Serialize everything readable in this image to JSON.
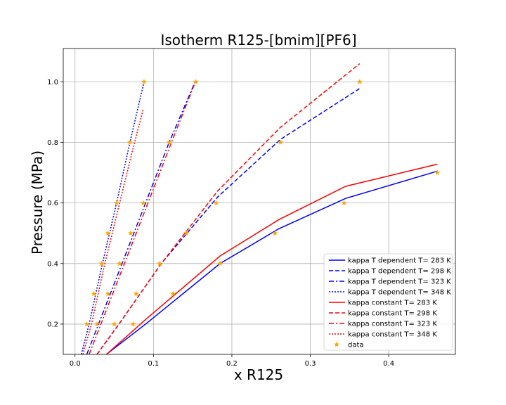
{
  "chart_data": {
    "type": "line",
    "title": "Isotherm R125-[bmim][PF6]",
    "xlabel": "x R125",
    "ylabel": "Pressure (MPa)",
    "xlim": [
      -0.015,
      0.485
    ],
    "ylim": [
      0.1,
      1.11
    ],
    "xticks": [
      0.0,
      0.1,
      0.2,
      0.3,
      0.4
    ],
    "xtick_labels": [
      "0.0",
      "0.1",
      "0.2",
      "0.3",
      "0.4"
    ],
    "yticks": [
      0.2,
      0.4,
      0.6,
      0.8,
      1.0
    ],
    "ytick_labels": [
      "0.2",
      "0.4",
      "0.6",
      "0.8",
      "1.0"
    ],
    "grid": true,
    "legend_position": "lower-right",
    "series": [
      {
        "name": "kappa T dependent T= 283 K",
        "color": "#0000ff",
        "dash": "solid",
        "x": [
          0.04,
          0.09,
          0.185,
          0.26,
          0.345,
          0.462
        ],
        "y": [
          0.1,
          0.2,
          0.4,
          0.515,
          0.615,
          0.705
        ]
      },
      {
        "name": "kappa T dependent T= 298 K",
        "color": "#0000ff",
        "dash": "dashed",
        "x": [
          0.028,
          0.056,
          0.11,
          0.182,
          0.262,
          0.363
        ],
        "y": [
          0.1,
          0.2,
          0.4,
          0.62,
          0.81,
          0.978
        ]
      },
      {
        "name": "kappa T dependent T= 323 K",
        "color": "#0000ff",
        "dash": "dashdot",
        "x": [
          0.015,
          0.03,
          0.06,
          0.09,
          0.12,
          0.154
        ],
        "y": [
          0.1,
          0.2,
          0.4,
          0.6,
          0.8,
          1.005
        ]
      },
      {
        "name": "kappa T dependent T= 348 K",
        "color": "#0000ff",
        "dash": "dotted",
        "x": [
          0.008,
          0.018,
          0.035,
          0.053,
          0.07,
          0.088
        ],
        "y": [
          0.1,
          0.2,
          0.4,
          0.6,
          0.8,
          1.0
        ]
      },
      {
        "name": "kappa constant T= 283 K",
        "color": "#ff0000",
        "dash": "solid",
        "x": [
          0.04,
          0.09,
          0.185,
          0.26,
          0.345,
          0.462
        ],
        "y": [
          0.1,
          0.215,
          0.425,
          0.545,
          0.655,
          0.728
        ]
      },
      {
        "name": "kappa constant T= 298 K",
        "color": "#ff0000",
        "dash": "dashed",
        "x": [
          0.028,
          0.056,
          0.11,
          0.182,
          0.262,
          0.363
        ],
        "y": [
          0.1,
          0.2,
          0.4,
          0.64,
          0.85,
          1.06
        ]
      },
      {
        "name": "kappa constant T= 323 K",
        "color": "#ff0000",
        "dash": "dashdot",
        "x": [
          0.018,
          0.033,
          0.063,
          0.093,
          0.123,
          0.152
        ],
        "y": [
          0.1,
          0.2,
          0.4,
          0.6,
          0.8,
          0.99
        ]
      },
      {
        "name": "kappa constant T= 348 K",
        "color": "#ff0000",
        "dash": "dotted",
        "x": [
          0.01,
          0.021,
          0.038,
          0.055,
          0.072,
          0.087
        ],
        "y": [
          0.1,
          0.2,
          0.4,
          0.58,
          0.76,
          0.91
        ]
      }
    ],
    "scatter": {
      "name": "data",
      "color": "#ffa500",
      "marker": "star",
      "points": [
        [
          0.088,
          1.0
        ],
        [
          0.07,
          0.8
        ],
        [
          0.053,
          0.6
        ],
        [
          0.042,
          0.5
        ],
        [
          0.034,
          0.4
        ],
        [
          0.024,
          0.3
        ],
        [
          0.015,
          0.2
        ],
        [
          0.154,
          1.0
        ],
        [
          0.12,
          0.8
        ],
        [
          0.087,
          0.6
        ],
        [
          0.071,
          0.5
        ],
        [
          0.057,
          0.4
        ],
        [
          0.042,
          0.3
        ],
        [
          0.028,
          0.2
        ],
        [
          0.363,
          1.0
        ],
        [
          0.262,
          0.8
        ],
        [
          0.18,
          0.6
        ],
        [
          0.142,
          0.5
        ],
        [
          0.108,
          0.4
        ],
        [
          0.078,
          0.3
        ],
        [
          0.05,
          0.2
        ],
        [
          0.462,
          0.7
        ],
        [
          0.343,
          0.6
        ],
        [
          0.255,
          0.5
        ],
        [
          0.185,
          0.4
        ],
        [
          0.125,
          0.3
        ],
        [
          0.074,
          0.2
        ]
      ]
    }
  }
}
